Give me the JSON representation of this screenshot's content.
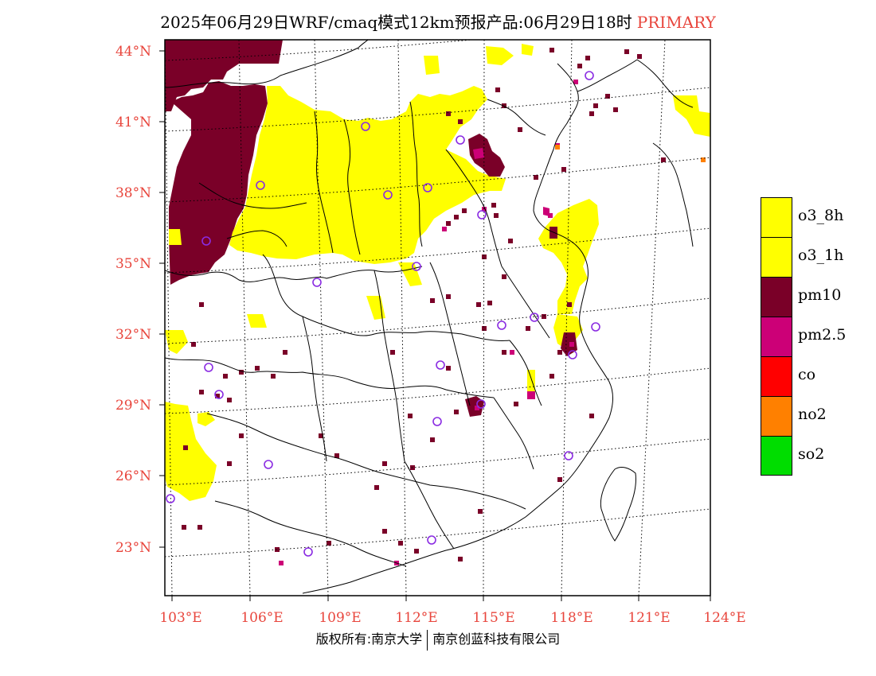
{
  "title": {
    "main": "2025年06月29日WRF/cmaq模式12km预报产品:06月29日18时",
    "tag": "PRIMARY",
    "tag_color": "#e8453c"
  },
  "axes": {
    "lat_labels": [
      "23°N",
      "26°N",
      "29°N",
      "32°N",
      "35°N",
      "38°N",
      "41°N",
      "44°N"
    ],
    "lon_labels": [
      "103°E",
      "106°E",
      "109°E",
      "112°E",
      "115°E",
      "118°E",
      "121°E",
      "124°E"
    ],
    "label_color": "#e8453c"
  },
  "legend": [
    {
      "label": "o3_8h",
      "color": "#ffff00"
    },
    {
      "label": "o3_1h",
      "color": "#ffff00"
    },
    {
      "label": "pm10",
      "color": "#7a0028"
    },
    {
      "label": "pm2.5",
      "color": "#cc0077"
    },
    {
      "label": "co",
      "color": "#ff0000"
    },
    {
      "label": "no2",
      "color": "#ff8000"
    },
    {
      "label": "so2",
      "color": "#00dd00"
    }
  ],
  "footer": {
    "left": "版权所有:南京大学",
    "right": "南京创蓝科技有限公司"
  },
  "station_marker_color": "#8a2be2"
}
